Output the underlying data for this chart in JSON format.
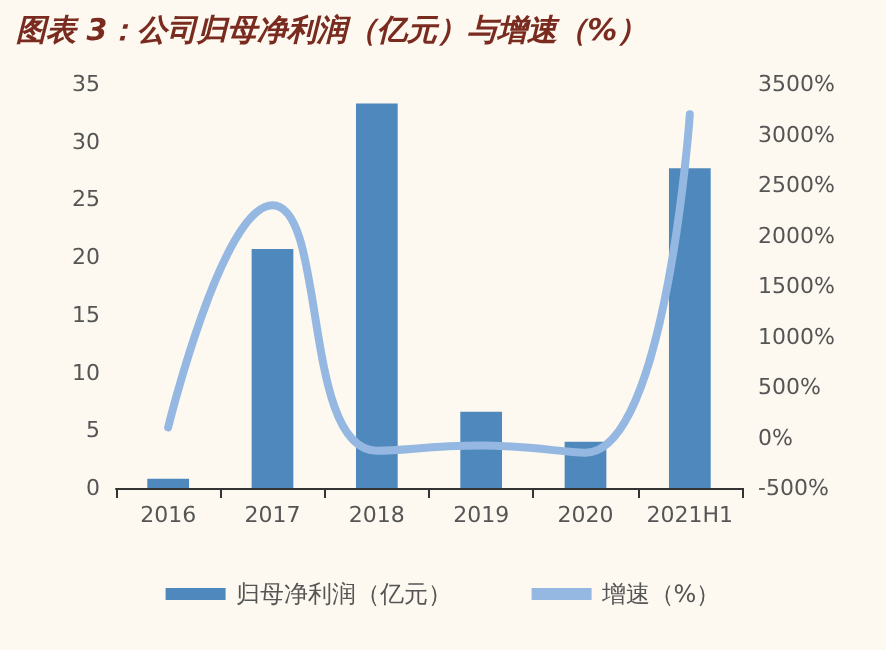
{
  "chart_data": {
    "type": "bar",
    "title": "图表 3：公司归母净利润（亿元）与增速（%）",
    "categories": [
      "2016",
      "2017",
      "2018",
      "2019",
      "2020",
      "2021H1"
    ],
    "series": [
      {
        "name": "归母净利润（亿元）",
        "color": "#4f88bc",
        "values": [
          0.8,
          20.7,
          33.3,
          6.6,
          4.0,
          27.7
        ]
      },
      {
        "name": "增速（%）",
        "type": "line",
        "axis": "y2",
        "color": "#95b8e2",
        "values": [
          100,
          2300,
          -130,
          -80,
          -150,
          3200
        ]
      }
    ],
    "ylim": [
      0,
      35
    ],
    "yticks": [
      0,
      5,
      10,
      15,
      20,
      25,
      30,
      35
    ],
    "y2lim": [
      -500,
      3500
    ],
    "y2ticks": [
      {
        "value": -500,
        "label": "-500%"
      },
      {
        "value": 0,
        "label": "0%"
      },
      {
        "value": 500,
        "label": "500%"
      },
      {
        "value": 1000,
        "label": "1000%"
      },
      {
        "value": 1500,
        "label": "1500%"
      },
      {
        "value": 2000,
        "label": "2000%"
      },
      {
        "value": 2500,
        "label": "2500%"
      },
      {
        "value": 3000,
        "label": "3000%"
      },
      {
        "value": 3500,
        "label": "3500%"
      }
    ],
    "grid": false,
    "legend": "bottom",
    "marker": "none",
    "line_style": "solid"
  }
}
